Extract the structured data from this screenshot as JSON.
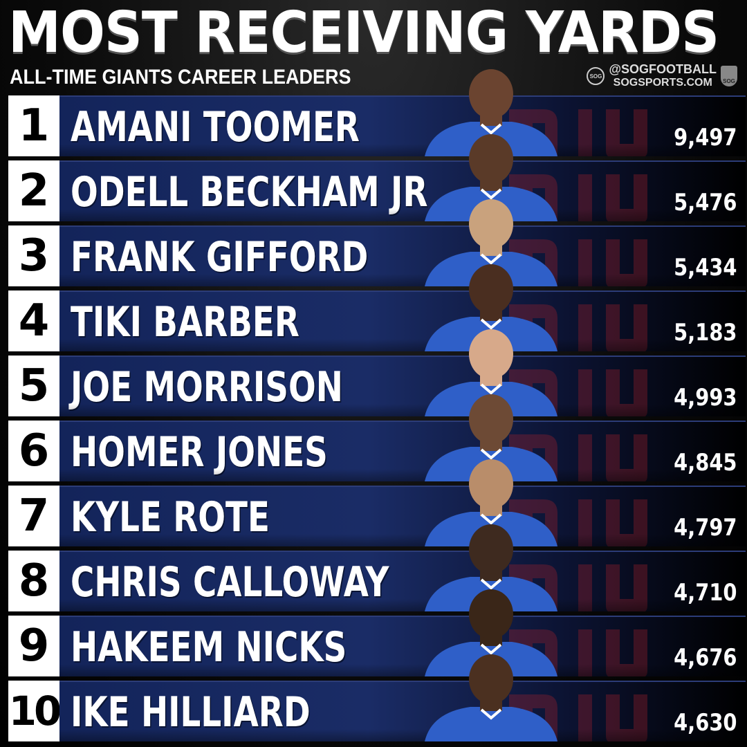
{
  "header": {
    "title": "MOST RECEIVING YARDS",
    "subtitle": "ALL-TIME GIANTS CAREER LEADERS"
  },
  "brand": {
    "mark": "SOG",
    "handle": "@SOGFOOTBALL",
    "site": "SOGSPORTS.COM",
    "shield": "SOG"
  },
  "colors": {
    "bar_blue": "#1a2c66",
    "jersey_blue": "#2f5fc8",
    "logo_red": "#a0212c",
    "rank_bg": "#ffffff"
  },
  "leaders": [
    {
      "rank": "1",
      "name": "AMANI TOOMER",
      "yards": "9,497",
      "skin": "#6b4430"
    },
    {
      "rank": "2",
      "name": "ODELL BECKHAM JR",
      "yards": "5,476",
      "skin": "#5a3a28"
    },
    {
      "rank": "3",
      "name": "FRANK GIFFORD",
      "yards": "5,434",
      "skin": "#c9a27d"
    },
    {
      "rank": "4",
      "name": "TIKI BARBER",
      "yards": "5,183",
      "skin": "#4a2e20"
    },
    {
      "rank": "5",
      "name": "JOE MORRISON",
      "yards": "4,993",
      "skin": "#d7a98a"
    },
    {
      "rank": "6",
      "name": "HOMER JONES",
      "yards": "4,845",
      "skin": "#6d4a35"
    },
    {
      "rank": "7",
      "name": "KYLE ROTE",
      "yards": "4,797",
      "skin": "#b98d6a"
    },
    {
      "rank": "8",
      "name": "CHRIS CALLOWAY",
      "yards": "4,710",
      "skin": "#3e2a1f"
    },
    {
      "rank": "9",
      "name": "HAKEEM NICKS",
      "yards": "4,676",
      "skin": "#3a2618"
    },
    {
      "rank": "10",
      "name": "IKE HILLIARD",
      "yards": "4,630",
      "skin": "#4b3020"
    }
  ]
}
